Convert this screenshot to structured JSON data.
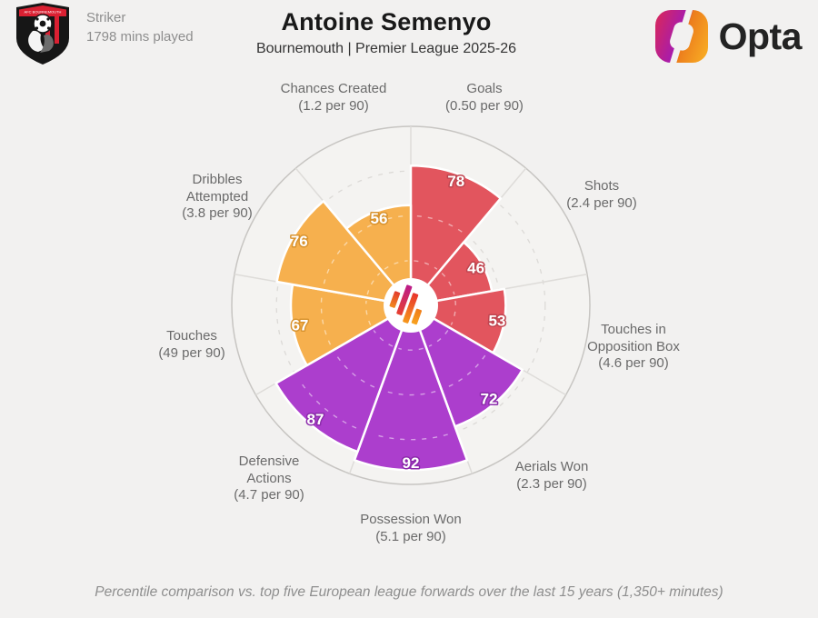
{
  "header": {
    "position": "Striker",
    "minutes": "1798 mins played",
    "title": "Antoine Semenyo",
    "subtitle": "Bournemouth | Premier League 2025-26",
    "crest_text": "AFC BOURNEMOUTH",
    "crest_colors": {
      "red": "#da2032",
      "black": "#161616"
    },
    "brand": "Opta",
    "opta_logo_colors": [
      "#d22666",
      "#a81cac",
      "#ec7c1c",
      "#f7a823"
    ]
  },
  "chart_data": {
    "type": "pizza-radar",
    "unit": "percentile",
    "max": 100,
    "gridlines": [
      25,
      50,
      75
    ],
    "legend": "none",
    "slices": [
      {
        "label": "Goals",
        "per90": "(0.50 per 90)",
        "value": 78,
        "color": "#e2555e",
        "halo": "#c04550"
      },
      {
        "label": "Shots",
        "per90": "(2.4 per 90)",
        "value": 46,
        "color": "#e2555e",
        "halo": "#c04550"
      },
      {
        "label": "Touches in Opposition Box",
        "per90": "(4.6 per 90)",
        "value": 53,
        "color": "#e2555e",
        "halo": "#c04550"
      },
      {
        "label": "Aerials Won",
        "per90": "(2.3 per 90)",
        "value": 72,
        "color": "#ac3ecd",
        "halo": "#8c2cab"
      },
      {
        "label": "Possession Won",
        "per90": "(5.1 per 90)",
        "value": 92,
        "color": "#ac3ecd",
        "halo": "#8c2cab"
      },
      {
        "label": "Defensive Actions",
        "per90": "(4.7 per 90)",
        "value": 87,
        "color": "#ac3ecd",
        "halo": "#8c2cab"
      },
      {
        "label": "Touches",
        "per90": "(49 per 90)",
        "value": 67,
        "color": "#f6b04e",
        "halo": "#d8932f"
      },
      {
        "label": "Dribbles Attempted",
        "per90": "(3.8 per 90)",
        "value": 76,
        "color": "#f6b04e",
        "halo": "#d8932f"
      },
      {
        "label": "Chances Created",
        "per90": "(1.2 per 90)",
        "value": 56,
        "color": "#f6b04e",
        "halo": "#d8932f"
      }
    ],
    "center_logo_colors": [
      [
        "#e23a2e",
        "#f28a1e"
      ],
      [
        "#bb1b8a",
        "#e8402f"
      ],
      [
        "#e8332c",
        "#f6981c"
      ],
      [
        "#ef7c1a",
        "#f8a31f"
      ]
    ]
  },
  "footer": {
    "note": "Percentile comparison vs. top five European league forwards over the last 15 years (1,350+ minutes)"
  }
}
